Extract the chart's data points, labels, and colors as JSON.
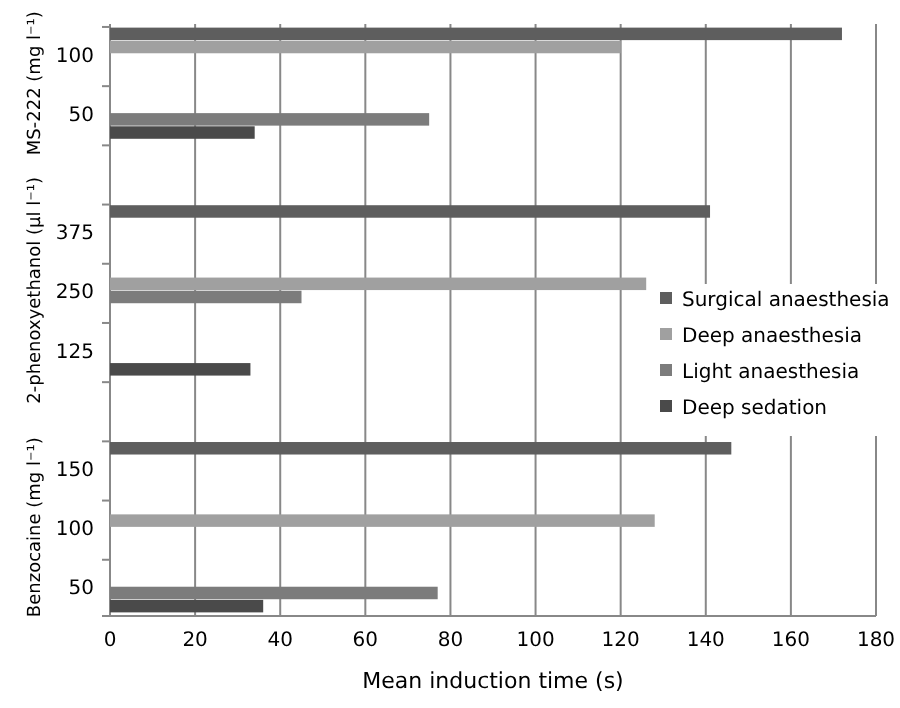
{
  "chart_data": {
    "type": "bar",
    "orientation": "horizontal",
    "xlabel": "Mean induction time (s)",
    "categories": [
      "100",
      "50",
      null,
      "375",
      "250",
      "125",
      null,
      "150",
      "100",
      "50"
    ],
    "annotations": [
      "MS-222 (mg l⁻¹)",
      "2-phenoxyethanol (µl l⁻¹)",
      "Benzocaine (mg l⁻¹)"
    ],
    "series": [
      {
        "name": "Surgical anaesthesia",
        "color": "#5e5e5e",
        "values": [
          172,
          null,
          null,
          141,
          null,
          null,
          null,
          146,
          null,
          null
        ]
      },
      {
        "name": "Deep anaesthesia",
        "color": "#a0a0a0",
        "values": [
          120,
          null,
          null,
          null,
          126,
          null,
          null,
          null,
          128,
          null
        ]
      },
      {
        "name": "Light anaesthesia",
        "color": "#7c7c7c",
        "values": [
          null,
          75,
          null,
          null,
          45,
          null,
          null,
          null,
          null,
          77
        ]
      },
      {
        "name": "Deep sedation",
        "color": "#4a4a4a",
        "values": [
          null,
          34,
          null,
          null,
          null,
          33,
          null,
          null,
          null,
          36
        ]
      }
    ],
    "xlim": [
      0,
      180
    ],
    "xticks": [
      0,
      20,
      40,
      60,
      80,
      100,
      120,
      140,
      160,
      180
    ],
    "grid": "x",
    "legend": "right"
  }
}
